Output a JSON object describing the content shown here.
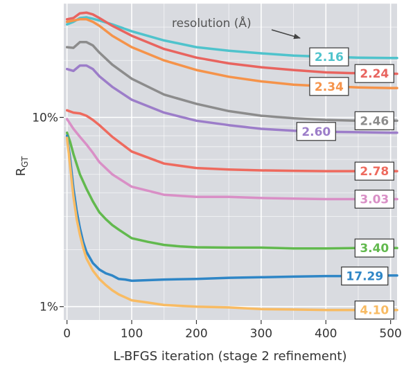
{
  "chart_data": {
    "type": "line",
    "title": "",
    "xlabel": "L-BFGS iteration (stage 2 refinement)",
    "ylabel_main": "R",
    "ylabel_sub": "GT",
    "xlim": [
      -5,
      510
    ],
    "ylim": [
      0.85,
      40
    ],
    "yscale": "log",
    "grid": true,
    "x_ticks": [
      0,
      100,
      200,
      300,
      400,
      500
    ],
    "x_tick_labels": [
      "0",
      "100",
      "200",
      "300",
      "400",
      "500"
    ],
    "y_ticks": [
      1,
      10
    ],
    "y_tick_labels": [
      "1%",
      "10%"
    ],
    "annotation": "resolution (Å)",
    "series": [
      {
        "name": "2.16",
        "color": "#4fc3cc",
        "label_x": 405,
        "x": [
          0,
          10,
          20,
          30,
          40,
          50,
          70,
          100,
          150,
          200,
          250,
          300,
          350,
          400,
          450,
          500,
          510
        ],
        "y": [
          31,
          32,
          33.5,
          33.8,
          33.2,
          32.5,
          31,
          28.5,
          25.5,
          23.5,
          22.5,
          21.8,
          21.2,
          20.9,
          20.7,
          20.6,
          20.6
        ]
      },
      {
        "name": "2.24",
        "color": "#e8645f",
        "label_x": 475,
        "x": [
          0,
          10,
          20,
          30,
          40,
          50,
          70,
          100,
          150,
          200,
          250,
          300,
          350,
          400,
          450,
          500,
          510
        ],
        "y": [
          33,
          33.5,
          35.5,
          35.8,
          35,
          33.5,
          30.5,
          27,
          23,
          20.7,
          19.3,
          18.4,
          17.8,
          17.3,
          17.1,
          17,
          17
        ]
      },
      {
        "name": "2.34",
        "color": "#f5934a",
        "label_x": 405,
        "x": [
          0,
          10,
          20,
          30,
          40,
          50,
          70,
          100,
          150,
          200,
          250,
          300,
          350,
          400,
          450,
          500,
          510
        ],
        "y": [
          32,
          32.5,
          33,
          33,
          32,
          30.5,
          27,
          23.5,
          20,
          17.8,
          16.4,
          15.5,
          14.9,
          14.6,
          14.4,
          14.3,
          14.3
        ]
      },
      {
        "name": "2.46",
        "color": "#8c8c8c",
        "label_x": 475,
        "x": [
          0,
          10,
          20,
          30,
          40,
          50,
          70,
          100,
          150,
          200,
          250,
          300,
          350,
          400,
          450,
          500,
          510
        ],
        "y": [
          23.5,
          23.3,
          25,
          25,
          24,
          22,
          19,
          16,
          13.2,
          11.8,
          10.8,
          10.2,
          9.9,
          9.7,
          9.6,
          9.6,
          9.6
        ]
      },
      {
        "name": "2.60",
        "color": "#9c7dc9",
        "label_x": 385,
        "x": [
          0,
          10,
          20,
          30,
          40,
          50,
          70,
          100,
          150,
          200,
          250,
          300,
          350,
          400,
          450,
          500,
          510
        ],
        "y": [
          18,
          17.6,
          18.8,
          18.8,
          18,
          16.5,
          14.5,
          12.4,
          10.6,
          9.6,
          9.1,
          8.7,
          8.5,
          8.4,
          8.35,
          8.3,
          8.3
        ]
      },
      {
        "name": "2.78",
        "color": "#ee6a5e",
        "label_x": 475,
        "x": [
          0,
          10,
          20,
          30,
          40,
          50,
          70,
          100,
          150,
          200,
          250,
          300,
          350,
          400,
          450,
          500,
          510
        ],
        "y": [
          10.9,
          10.6,
          10.5,
          10.2,
          9.7,
          9.1,
          7.9,
          6.6,
          5.7,
          5.4,
          5.3,
          5.25,
          5.22,
          5.2,
          5.2,
          5.2,
          5.2
        ]
      },
      {
        "name": "3.03",
        "color": "#d98fc6",
        "label_x": 475,
        "x": [
          0,
          10,
          20,
          30,
          40,
          50,
          70,
          100,
          150,
          200,
          250,
          300,
          350,
          400,
          450,
          500,
          510
        ],
        "y": [
          9.8,
          8.7,
          7.9,
          7.2,
          6.5,
          5.8,
          5.0,
          4.3,
          3.9,
          3.8,
          3.8,
          3.75,
          3.72,
          3.7,
          3.7,
          3.7,
          3.7
        ]
      },
      {
        "name": "3.40",
        "color": "#62b94e",
        "label_x": 475,
        "x": [
          0,
          5,
          10,
          20,
          30,
          40,
          50,
          60,
          70,
          80,
          100,
          125,
          150,
          175,
          200,
          250,
          300,
          350,
          400,
          450,
          500,
          510
        ],
        "y": [
          8.3,
          7.4,
          6.4,
          5.0,
          4.2,
          3.6,
          3.15,
          2.9,
          2.7,
          2.55,
          2.3,
          2.2,
          2.12,
          2.08,
          2.06,
          2.05,
          2.05,
          2.03,
          2.03,
          2.04,
          2.04,
          2.04
        ]
      },
      {
        "name": "17.29",
        "color": "#2f86c6",
        "label_x": 460,
        "x": [
          0,
          5,
          10,
          15,
          20,
          25,
          30,
          40,
          50,
          60,
          70,
          80,
          90,
          100,
          125,
          150,
          200,
          250,
          300,
          350,
          400,
          450,
          500,
          510
        ],
        "y": [
          8.0,
          6.0,
          4.2,
          3.2,
          2.6,
          2.2,
          1.95,
          1.7,
          1.57,
          1.5,
          1.46,
          1.4,
          1.39,
          1.37,
          1.38,
          1.39,
          1.4,
          1.42,
          1.43,
          1.44,
          1.45,
          1.45,
          1.46,
          1.46
        ]
      },
      {
        "name": "4.10",
        "color": "#f8bb63",
        "label_x": 475,
        "x": [
          0,
          5,
          10,
          15,
          20,
          25,
          30,
          40,
          50,
          60,
          70,
          80,
          90,
          100,
          125,
          150,
          200,
          250,
          300,
          350,
          400,
          450,
          500,
          510
        ],
        "y": [
          7.8,
          5.5,
          3.8,
          2.9,
          2.4,
          2.05,
          1.8,
          1.55,
          1.4,
          1.3,
          1.22,
          1.16,
          1.12,
          1.08,
          1.05,
          1.02,
          1.0,
          0.99,
          0.97,
          0.965,
          0.96,
          0.96,
          0.96,
          0.96
        ]
      }
    ]
  }
}
